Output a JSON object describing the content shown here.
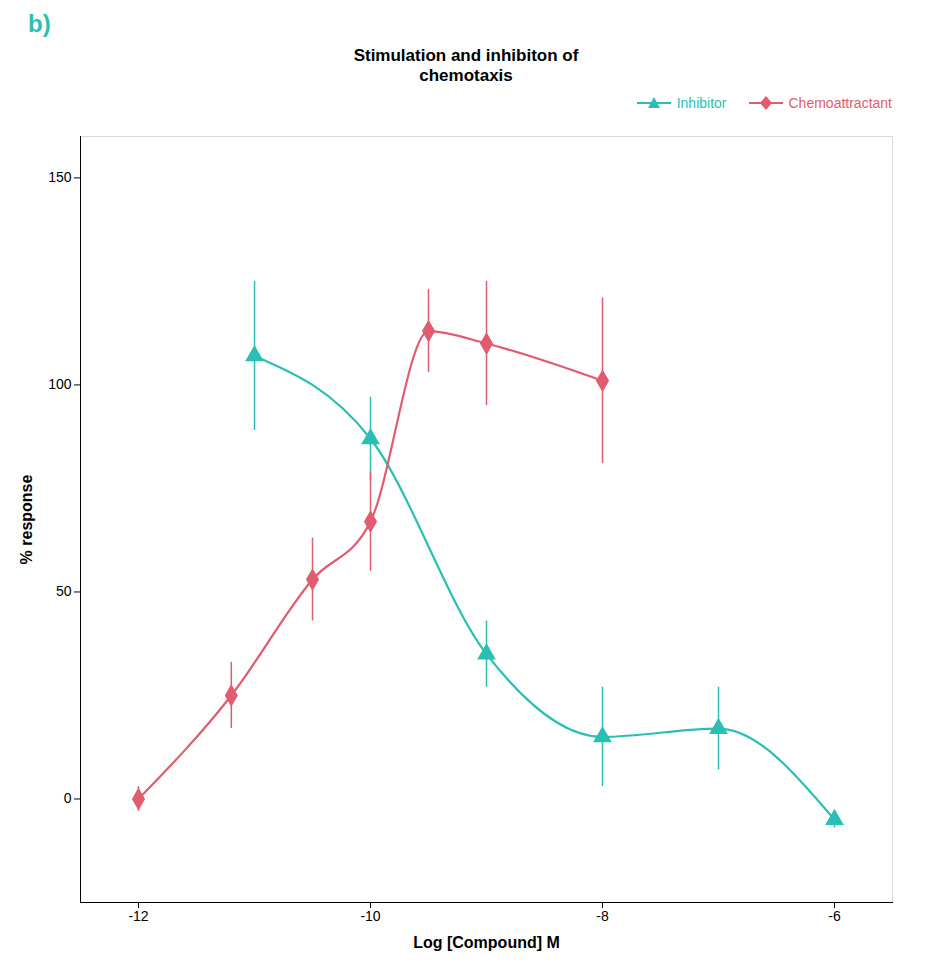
{
  "chart_data": {
    "type": "scatter",
    "title": "Stimulation and inhibiton of\nchemotaxis",
    "xlabel": "Log [Compound] M",
    "ylabel": "% response",
    "annotations": [
      {
        "text": "b)",
        "color": "#2bbfb3"
      }
    ],
    "xlim": [
      -12.5,
      -5.5
    ],
    "ylim": [
      -25,
      160
    ],
    "xticks": [
      -12,
      -10,
      -8,
      -6
    ],
    "yticks": [
      0,
      50,
      100,
      150
    ],
    "grid": false,
    "legend": "upper right",
    "series": [
      {
        "name": "Inhibitor",
        "color": "#2bbfb3",
        "marker": "triangle",
        "line_style": "solid",
        "x": [
          -11,
          -10,
          -9,
          -8,
          -7,
          -6
        ],
        "values": [
          107,
          87,
          35,
          15,
          17,
          -5
        ],
        "yerr": [
          18,
          10,
          8,
          12,
          10,
          2
        ]
      },
      {
        "name": "Chemoattractant",
        "color": "#e05c6e",
        "marker": "diamond",
        "line_style": "solid",
        "x": [
          -12,
          -11.2,
          -10.5,
          -10,
          -9.5,
          -9,
          -8
        ],
        "values": [
          0,
          25,
          53,
          67,
          113,
          110,
          101
        ],
        "yerr": [
          3,
          8,
          10,
          12,
          10,
          15,
          20
        ]
      }
    ]
  }
}
